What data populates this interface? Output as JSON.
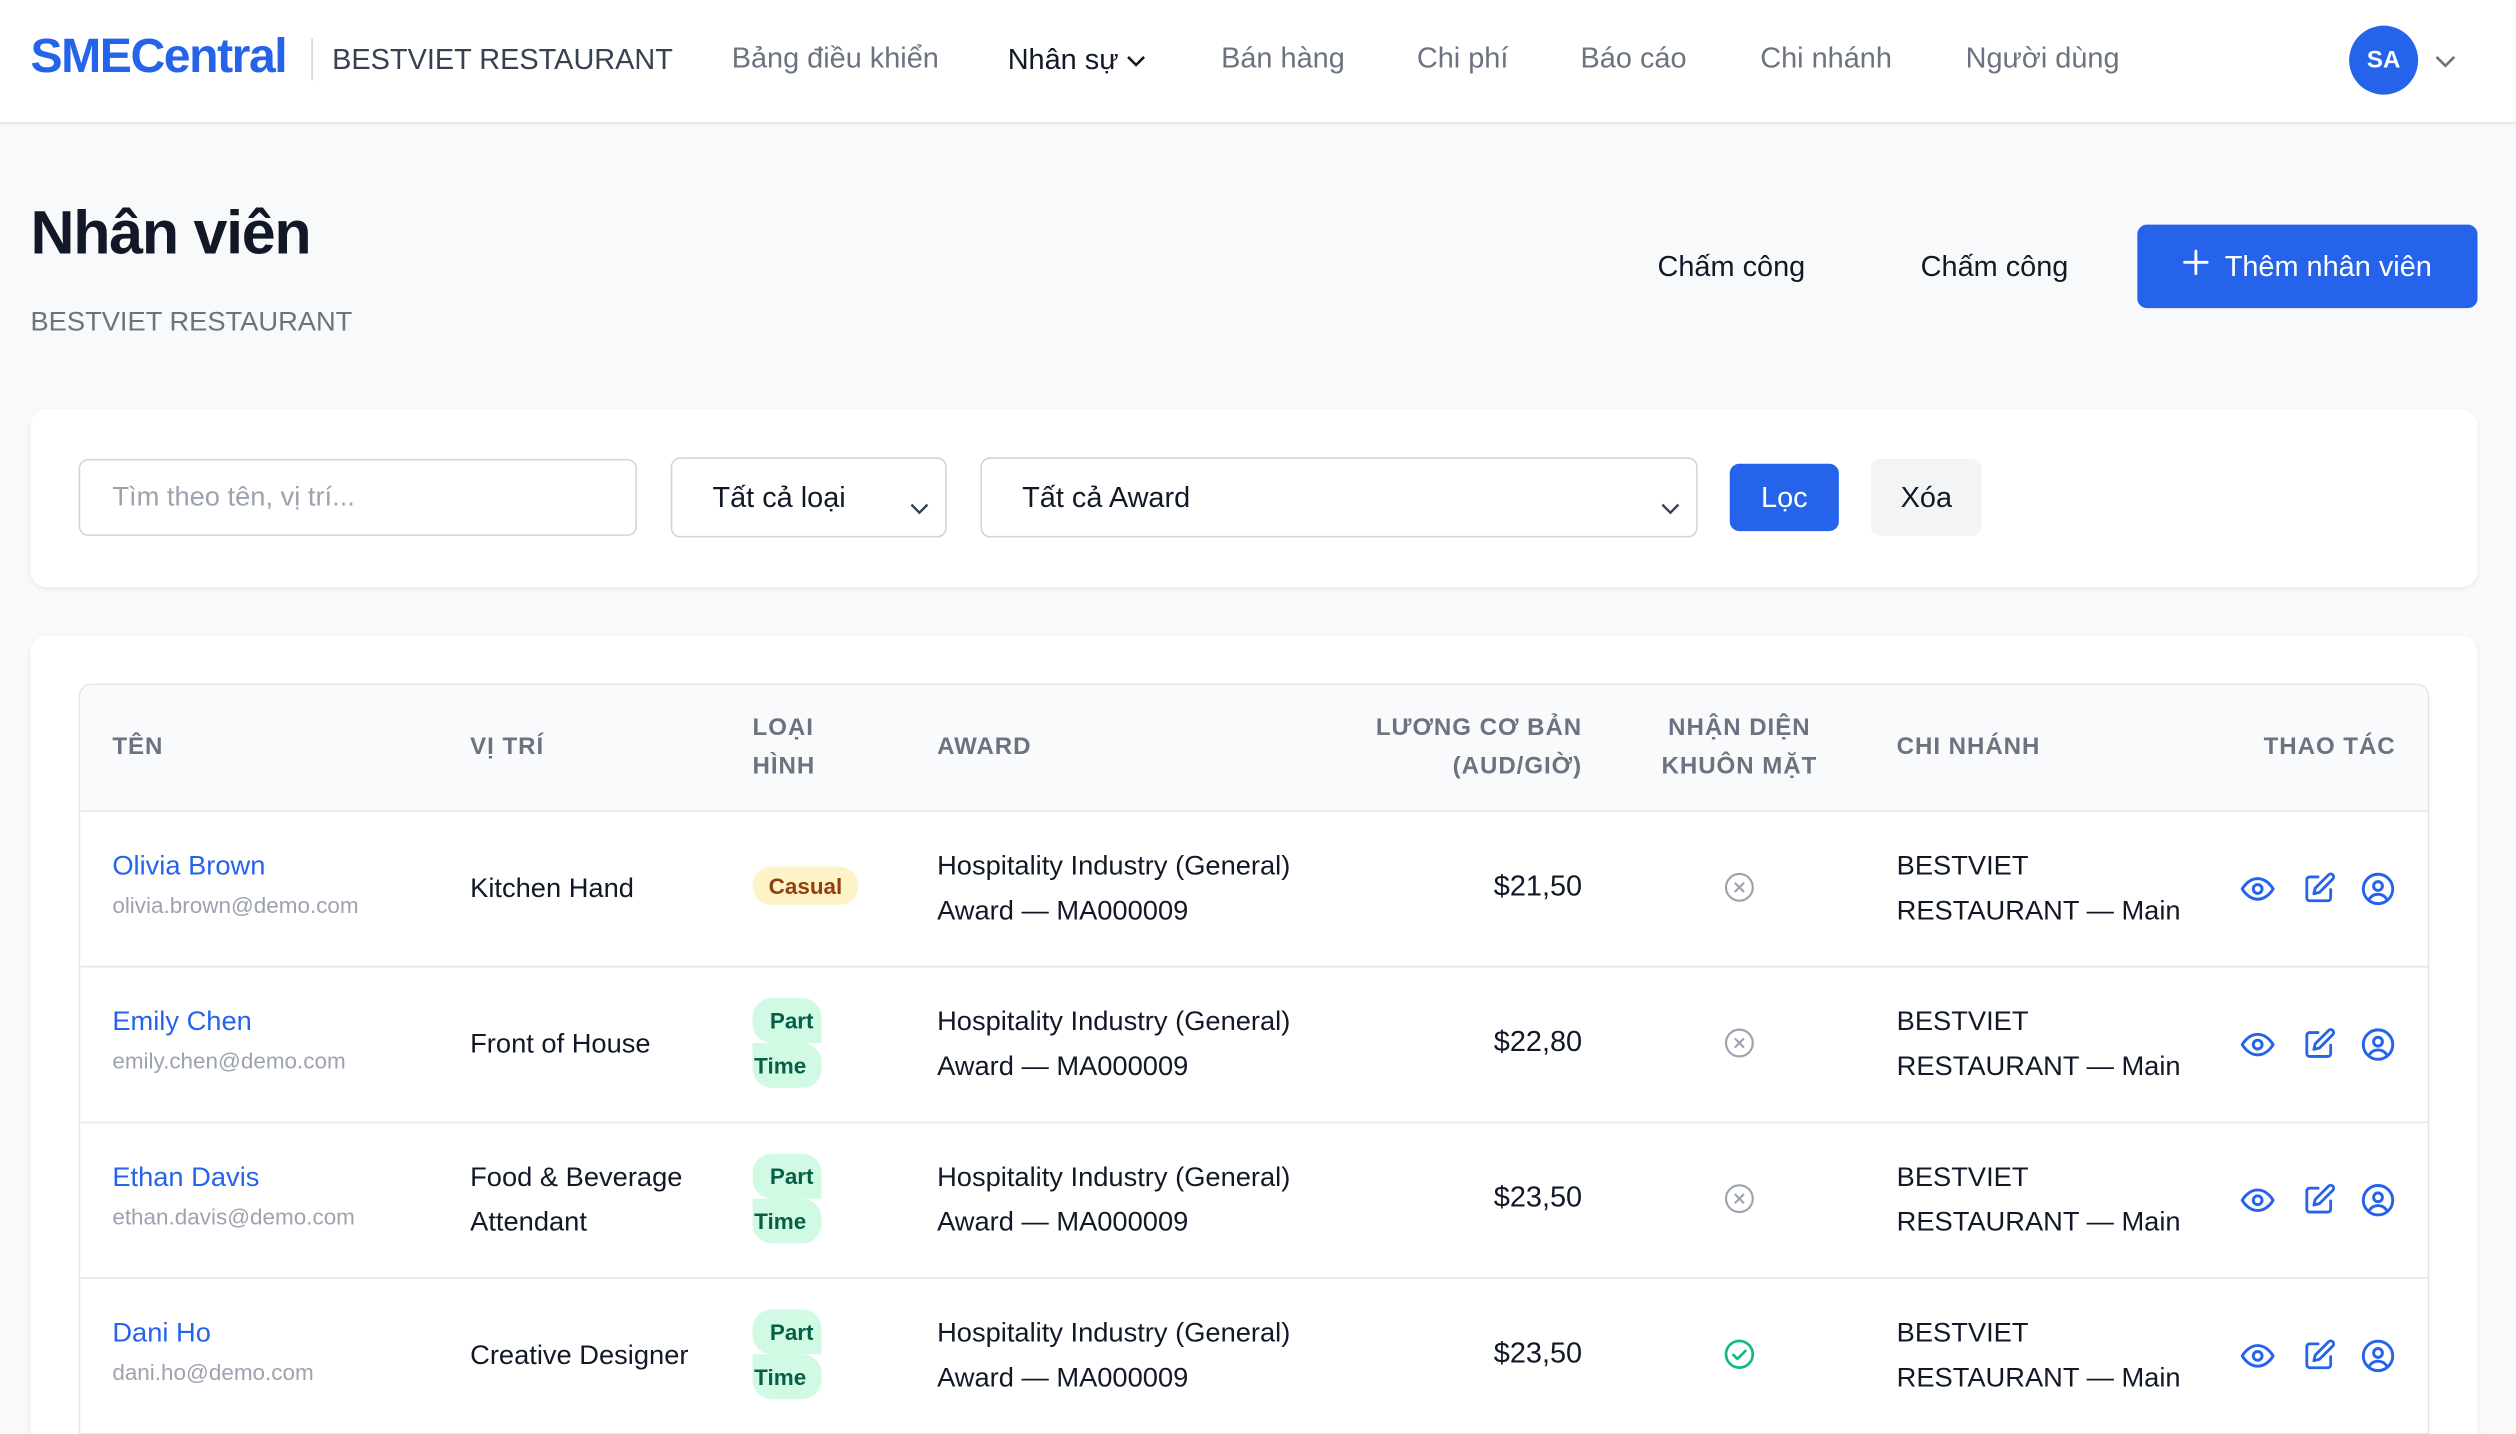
{
  "nav": {
    "logo": "SMECentral",
    "org": "BESTVIET RESTAURANT",
    "items": [
      "Bảng điều khiển",
      "Nhân sự",
      "Bán hàng",
      "Chi phí",
      "Báo cáo",
      "Chi nhánh",
      "Người dùng"
    ],
    "active_item": "Nhân sự",
    "avatar": "SA"
  },
  "header": {
    "title": "Nhân viên",
    "subtitle": "BESTVIET RESTAURANT",
    "btn_timesheet_1": "Chấm công",
    "btn_timesheet_2": "Chấm công",
    "btn_add": "Thêm nhân viên"
  },
  "filters": {
    "search_placeholder": "Tìm theo tên, vị trí...",
    "type_selected": "Tất cả loại",
    "award_selected": "Tất cả Award",
    "filter_btn": "Lọc",
    "clear_btn": "Xóa"
  },
  "table": {
    "headers": {
      "name": "TÊN",
      "position": "VỊ TRÍ",
      "type_1": "LOẠI",
      "type_2": "HÌNH",
      "award": "AWARD",
      "rate_1": "LƯƠNG CƠ BẢN",
      "rate_2": "(AUD/GIỜ)",
      "face_1": "NHẬN DIỆN",
      "face_2": "KHUÔN MẶT",
      "branch": "CHI NHÁNH",
      "actions": "THAO TÁC"
    },
    "rows": [
      {
        "name": "Olivia Brown",
        "email": "olivia.brown@demo.com",
        "position_1": "Kitchen Hand",
        "position_2": "",
        "type_1": "Casual",
        "type_2": "",
        "award_1": "Hospitality Industry (General)",
        "award_2": "Award — MA000009",
        "rate": "$21,50",
        "face": "none",
        "branch_1": "BESTVIET",
        "branch_2": "RESTAURANT — Main"
      },
      {
        "name": "Emily Chen",
        "email": "emily.chen@demo.com",
        "position_1": "Front of House",
        "position_2": "",
        "type_1": "Part",
        "type_2": "Time",
        "award_1": "Hospitality Industry (General)",
        "award_2": "Award — MA000009",
        "rate": "$22,80",
        "face": "none",
        "branch_1": "BESTVIET",
        "branch_2": "RESTAURANT — Main"
      },
      {
        "name": "Ethan Davis",
        "email": "ethan.davis@demo.com",
        "position_1": "Food & Beverage",
        "position_2": "Attendant",
        "type_1": "Part",
        "type_2": "Time",
        "award_1": "Hospitality Industry (General)",
        "award_2": "Award — MA000009",
        "rate": "$23,50",
        "face": "none",
        "branch_1": "BESTVIET",
        "branch_2": "RESTAURANT — Main"
      },
      {
        "name": "Dani Ho",
        "email": "dani.ho@demo.com",
        "position_1": "Creative Designer",
        "position_2": "",
        "type_1": "Part",
        "type_2": "Time",
        "award_1": "Hospitality Industry (General)",
        "award_2": "Award — MA000009",
        "rate": "$23,50",
        "face": "registered",
        "branch_1": "BESTVIET",
        "branch_2": "RESTAURANT — Main"
      }
    ]
  },
  "colors": {
    "accent": "#2563eb",
    "casual_bg": "#fef3c7",
    "parttime_bg": "#d1fae5",
    "face_ok": "#10b981",
    "face_none": "#9ca3af"
  },
  "icons": {
    "view": "eye-icon",
    "edit": "edit-icon",
    "face": "user-circle-icon",
    "add": "plus-icon",
    "dropdown": "chevron-down-icon",
    "face_none": "x-circle-icon",
    "face_ok": "check-circle-icon"
  }
}
